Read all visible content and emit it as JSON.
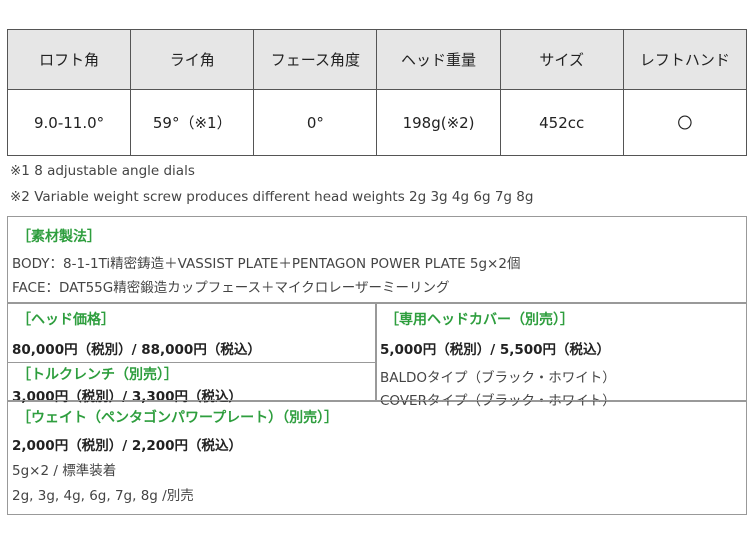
{
  "spec_table": {
    "headers": [
      "ロフト角",
      "ライ角",
      "フェース角度",
      "ヘッド重量",
      "サイズ",
      "レフトハンド"
    ],
    "row": [
      "9.0-11.0°",
      "59°（※1）",
      "0°",
      "198g(※2)",
      "452cc",
      "〇"
    ]
  },
  "notes": [
    "※1  8 adjustable angle dials",
    "※2 Variable weight screw produces different head weights 2g 3g 4g 6g 7g 8g"
  ],
  "material": {
    "title": "［素材製法］",
    "body": "BODY：8-1-1Ti精密鋳造＋VASSIST PLATE＋PENTAGON POWER PLATE 5g×2個",
    "face": "FACE：DAT55G精密鍛造カップフェース＋マイクロレーザーミーリング"
  },
  "head_price": {
    "title": "［ヘッド価格］",
    "price": "80,000円（税別）/ 88,000円（税込）"
  },
  "torque_wrench": {
    "title": "［トルクレンチ（別売）］",
    "price": "3,000円（税別）/ 3,300円（税込）"
  },
  "head_cover": {
    "title": "［専用ヘッドカバー（別売）］",
    "price": "5,000円（税別）/ 5,500円（税込）",
    "types": [
      "BALDOタイプ（ブラック・ホワイト）",
      "COVERタイプ（ブラック・ホワイト）"
    ]
  },
  "weight": {
    "title": "［ウェイト（ペンタゴンパワープレート）（別売）］",
    "price": "2,000円（税別）/ 2,200円（税込）",
    "standard": "5g×2 / 標準装着",
    "options": "2g, 3g, 4g, 6g, 7g, 8g /別売"
  },
  "colors": {
    "accent_green": "#2e9e3e",
    "header_bg": "#e6e6e6"
  }
}
